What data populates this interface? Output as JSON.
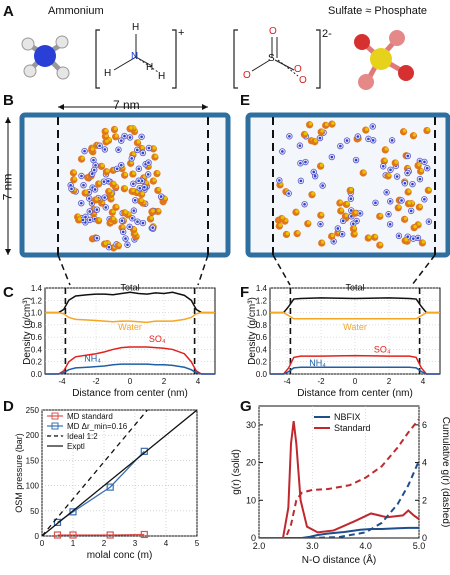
{
  "panels": {
    "a": "A",
    "b": "B",
    "c": "C",
    "d": "D",
    "e": "E",
    "f": "F",
    "g": "G"
  },
  "top": {
    "ammonium_label": "Ammonium",
    "sulfate_label": "Sulfate ≈ Phosphate",
    "ammonium_charge": "+",
    "sulfate_charge": "2-",
    "atoms_nh4": {
      "center": "N",
      "h": "H"
    },
    "atoms_so4": {
      "center": "S",
      "o": "O"
    }
  },
  "boxes": {
    "width_label": "7 nm",
    "height_label": "7 nm"
  },
  "chart_data": [
    {
      "id": "C",
      "type": "line",
      "ylabel": "Density (g/cm³)",
      "xlabel": "Distance from center (nm)",
      "xlim": [
        -5,
        5
      ],
      "ylim": [
        0,
        1.4
      ],
      "xticks": [
        -4,
        -2,
        0,
        2,
        4
      ],
      "yticks": [
        0.0,
        0.2,
        0.4,
        0.6,
        0.8,
        1.0,
        1.2,
        1.4
      ],
      "dashed_x": [
        -3.8,
        3.8
      ],
      "series": [
        {
          "name": "Total",
          "color": "#111111",
          "x": [
            -5,
            -4.2,
            -3.9,
            -3.6,
            -3.2,
            -2.5,
            -2,
            -1.5,
            -1,
            -0.5,
            0,
            0.5,
            1,
            1.5,
            2,
            2.5,
            3.2,
            3.6,
            3.9,
            4.2,
            5
          ],
          "y": [
            1.0,
            1.0,
            1.05,
            1.2,
            1.27,
            1.29,
            1.3,
            1.3,
            1.29,
            1.31,
            1.33,
            1.31,
            1.3,
            1.32,
            1.31,
            1.33,
            1.28,
            1.2,
            1.05,
            1.0,
            1.0
          ]
        },
        {
          "name": "Water",
          "color": "#f5a623",
          "x": [
            -5,
            -4.2,
            -3.9,
            -3.6,
            -3.2,
            -2.5,
            -2,
            -1.5,
            -1,
            -0.5,
            0,
            0.5,
            1,
            1.5,
            2,
            2.5,
            3.2,
            3.6,
            3.9,
            4.2,
            5
          ],
          "y": [
            1.0,
            1.0,
            0.98,
            0.92,
            0.89,
            0.88,
            0.87,
            0.86,
            0.85,
            0.86,
            0.86,
            0.85,
            0.84,
            0.86,
            0.86,
            0.86,
            0.89,
            0.92,
            0.98,
            1.0,
            1.0
          ]
        },
        {
          "name": "SO₄",
          "color": "#e0221e",
          "x": [
            -5,
            -4.2,
            -3.9,
            -3.6,
            -3.2,
            -2.5,
            -2,
            -1.5,
            -1,
            -0.5,
            0,
            0.5,
            1,
            1.5,
            2,
            2.5,
            3.2,
            3.6,
            3.9,
            4.2,
            5
          ],
          "y": [
            0.0,
            0.0,
            0.05,
            0.2,
            0.28,
            0.31,
            0.33,
            0.36,
            0.4,
            0.43,
            0.44,
            0.44,
            0.44,
            0.43,
            0.42,
            0.4,
            0.33,
            0.2,
            0.05,
            0.0,
            0.0
          ]
        },
        {
          "name": "NH₄",
          "color": "#1f5fa6",
          "x": [
            -5,
            -4.2,
            -3.9,
            -3.6,
            -3.2,
            -2.5,
            -2,
            -1.5,
            -1,
            -0.5,
            0,
            0.5,
            1,
            1.5,
            2,
            2.5,
            3.2,
            3.6,
            3.9,
            4.2,
            5
          ],
          "y": [
            0.0,
            0.0,
            0.02,
            0.07,
            0.1,
            0.11,
            0.12,
            0.13,
            0.15,
            0.16,
            0.16,
            0.16,
            0.16,
            0.15,
            0.15,
            0.14,
            0.11,
            0.07,
            0.02,
            0.0,
            0.0
          ]
        }
      ]
    },
    {
      "id": "F",
      "type": "line",
      "ylabel": "Density (g/cm³)",
      "xlabel": "Distance from center (nm)",
      "xlim": [
        -5,
        5
      ],
      "ylim": [
        0,
        1.4
      ],
      "xticks": [
        -4,
        -2,
        0,
        2,
        4
      ],
      "yticks": [
        0.0,
        0.2,
        0.4,
        0.6,
        0.8,
        1.0,
        1.2,
        1.4
      ],
      "dashed_x": [
        -3.8,
        3.8
      ],
      "series": [
        {
          "name": "Total",
          "color": "#111111",
          "x": [
            -5,
            -4.2,
            -3.9,
            -3.6,
            -3.2,
            -2,
            0,
            2,
            3.2,
            3.6,
            3.9,
            4.2,
            5
          ],
          "y": [
            1.0,
            1.0,
            1.1,
            1.22,
            1.23,
            1.24,
            1.23,
            1.24,
            1.23,
            1.22,
            1.1,
            1.0,
            1.0
          ]
        },
        {
          "name": "Water",
          "color": "#f5a623",
          "x": [
            -5,
            -4.2,
            -3.9,
            -3.6,
            -3.2,
            -2,
            0,
            2,
            3.2,
            3.6,
            3.9,
            4.2,
            5
          ],
          "y": [
            1.0,
            1.0,
            0.95,
            0.9,
            0.9,
            0.9,
            0.9,
            0.9,
            0.9,
            0.9,
            0.95,
            1.0,
            1.0
          ]
        },
        {
          "name": "SO₄",
          "color": "#e0221e",
          "x": [
            -5,
            -4.2,
            -3.9,
            -3.6,
            -3.2,
            -2,
            0,
            2,
            3.2,
            3.6,
            3.9,
            4.2,
            5
          ],
          "y": [
            0.0,
            0.0,
            0.1,
            0.27,
            0.29,
            0.29,
            0.3,
            0.29,
            0.29,
            0.27,
            0.1,
            0.0,
            0.0
          ]
        },
        {
          "name": "NH₄",
          "color": "#1f5fa6",
          "x": [
            -5,
            -4.2,
            -3.9,
            -3.6,
            -3.2,
            -2,
            0,
            2,
            3.2,
            3.6,
            3.9,
            4.2,
            5
          ],
          "y": [
            0.0,
            0.0,
            0.04,
            0.1,
            0.11,
            0.11,
            0.11,
            0.11,
            0.11,
            0.1,
            0.04,
            0.0,
            0.0
          ]
        }
      ]
    },
    {
      "id": "D",
      "type": "line",
      "ylabel": "OSM pressure (bar)",
      "xlabel": "molal conc (m)",
      "xlim": [
        0,
        5
      ],
      "ylim": [
        0,
        250
      ],
      "xticks": [
        0,
        1,
        2,
        3,
        4,
        5
      ],
      "yticks": [
        0,
        50,
        100,
        150,
        200,
        250
      ],
      "legend": "top-left",
      "series": [
        {
          "name": "MD standard",
          "color": "#d9534f",
          "marker": "square",
          "x": [
            0.5,
            1.0,
            2.2,
            3.3
          ],
          "y": [
            2,
            2,
            2,
            3
          ]
        },
        {
          "name": "MD Δr_min=0.16",
          "color": "#3a6fb0",
          "marker": "square",
          "x": [
            0.5,
            1.0,
            2.2,
            3.3
          ],
          "y": [
            27,
            48,
            97,
            168
          ]
        },
        {
          "name": "Ideal 1:2",
          "color": "#111111",
          "style": "dashed",
          "x": [
            0,
            3.4
          ],
          "y": [
            0,
            250
          ]
        },
        {
          "name": "Exptl",
          "color": "#111111",
          "style": "solid",
          "x": [
            0,
            5
          ],
          "y": [
            0,
            250
          ]
        }
      ]
    },
    {
      "id": "G",
      "type": "line",
      "ylabel": "g(r) (solid)",
      "y2label": "Cumulative g(r) (dashed)",
      "xlabel": "N-O distance (Å)",
      "xlim": [
        2.0,
        5.0
      ],
      "ylim": [
        0,
        35
      ],
      "y2lim": [
        0,
        7
      ],
      "xticks": [
        "2.0",
        "3.0",
        "4.0",
        "5.0"
      ],
      "yticks": [
        0,
        10,
        20,
        30
      ],
      "y2ticks": [
        0,
        2,
        4,
        6
      ],
      "legend": "top-center",
      "series": [
        {
          "name": "NBFIX",
          "color": "#1f4e8c",
          "style": "solid",
          "axis": "left",
          "x": [
            2.0,
            2.8,
            2.95,
            3.1,
            3.3,
            3.6,
            3.9,
            4.1,
            4.3,
            4.6,
            4.8,
            5.0
          ],
          "y": [
            0,
            0,
            0.3,
            0.8,
            1.2,
            1.6,
            2.2,
            2.4,
            2.4,
            2.6,
            2.7,
            2.7
          ]
        },
        {
          "name": "Standard",
          "color": "#c0282d",
          "style": "solid",
          "axis": "left",
          "x": [
            2.0,
            2.45,
            2.55,
            2.6,
            2.65,
            2.7,
            2.78,
            2.9,
            3.1,
            3.4,
            3.8,
            4.1,
            4.4,
            4.7,
            4.8,
            4.9,
            5.0
          ],
          "y": [
            0,
            0,
            8,
            25,
            31,
            25,
            10,
            3,
            1.5,
            2.0,
            4.5,
            6.5,
            5.5,
            6.0,
            7.3,
            6.0,
            5.0
          ]
        },
        {
          "name": "NBFIX cumulative",
          "color": "#1f4e8c",
          "style": "dashed",
          "axis": "right",
          "x": [
            2.0,
            3.0,
            3.5,
            4.0,
            4.3,
            4.6,
            4.8,
            5.0
          ],
          "y": [
            0,
            0,
            0.05,
            0.3,
            0.8,
            1.8,
            2.8,
            4.1
          ]
        },
        {
          "name": "Standard cumulative",
          "color": "#c0282d",
          "style": "dashed",
          "axis": "right",
          "x": [
            2.0,
            2.5,
            2.6,
            2.7,
            2.8,
            3.0,
            3.3,
            3.7,
            4.0,
            4.3,
            4.6,
            4.8,
            5.0
          ],
          "y": [
            0,
            0,
            0.7,
            2.0,
            2.4,
            2.55,
            2.6,
            2.8,
            3.2,
            3.8,
            4.8,
            5.6,
            6.3
          ]
        }
      ]
    }
  ],
  "colors": {
    "water_box": "#2f6f9f",
    "sulfur": "#e6c200",
    "oxygen": "#d73030",
    "nitrogen": "#2a3fd6",
    "hydrogen": "#e8e8e8"
  }
}
